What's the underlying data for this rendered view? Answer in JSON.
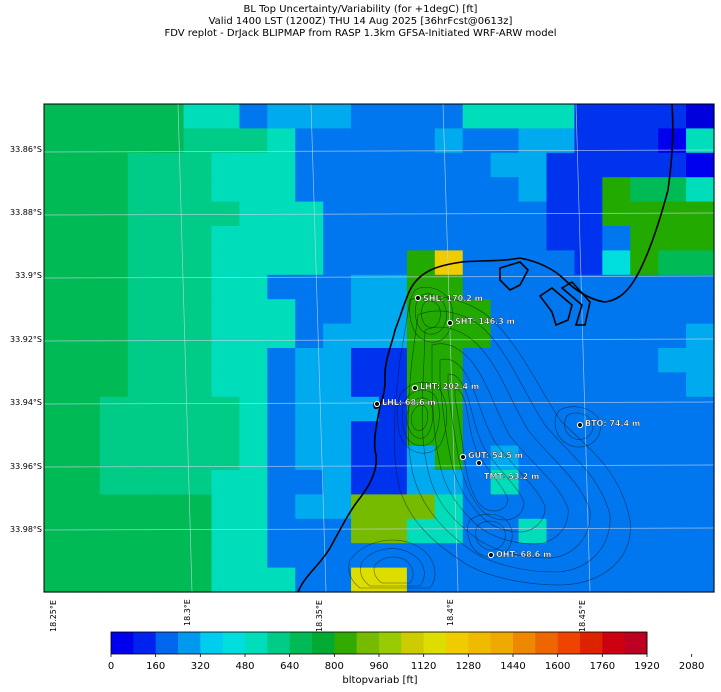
{
  "titles": {
    "line1": "BL Top Uncertainty/Variability (for +1degC) [ft]",
    "line2": "Valid 1400 LST (1200Z) THU 14 Aug 2025 [36hrFcst@0613z]",
    "line3": "FDV replot - DrJack BLIPMAP from RASP 1.3km GFSA-Initiated WRF-ARW model"
  },
  "lat_labels": [
    "33.86°S",
    "33.88°S",
    "33.9°S",
    "33.92°S",
    "33.94°S",
    "33.96°S",
    "33.98°S"
  ],
  "lon_labels": [
    "18.25°E",
    "18.3°E",
    "18.35°E",
    "18.4°E",
    "18.45°E"
  ],
  "stations": [
    {
      "name": "SHL",
      "value": "170.2 m",
      "label": "SHL: 170.2 m"
    },
    {
      "name": "SHT",
      "value": "146.3 m",
      "label": "SHT: 146.3 m"
    },
    {
      "name": "LHT",
      "value": "202.4 m",
      "label": "LHT: 202.4 m"
    },
    {
      "name": "LHL",
      "value": "68.6 m",
      "label": "LHL: 68.6 m"
    },
    {
      "name": "BTO",
      "value": "74.4 m",
      "label": "BTO: 74.4 m"
    },
    {
      "name": "GUT",
      "value": "54.5 m",
      "label": "GUT: 54.5 m"
    },
    {
      "name": "TMT",
      "value": "53.2 m",
      "label": "TMT: 53.2 m"
    },
    {
      "name": "OHT",
      "value": "68.6 m",
      "label": "OHT: 68.6 m"
    }
  ],
  "colorbar": {
    "label": "bltopvariab [ft]",
    "ticks": [
      "0",
      "160",
      "320",
      "480",
      "640",
      "800",
      "960",
      "1120",
      "1280",
      "1440",
      "1600",
      "1760",
      "1920",
      "2080"
    ],
    "colors": [
      "#0000ee",
      "#0022ee",
      "#0066ee",
      "#0099ee",
      "#00ccee",
      "#00dddd",
      "#00ddbb",
      "#00cc88",
      "#00bb55",
      "#00aa33",
      "#33aa00",
      "#77bb00",
      "#99cc00",
      "#cccc00",
      "#dddd00",
      "#eecc00",
      "#eebb00",
      "#eeaa00",
      "#ee8800",
      "#ee6600",
      "#ee4400",
      "#dd2200",
      "#cc0011",
      "#bb0022"
    ]
  },
  "grid": {
    "rows": [
      "CCCCCEEFGGGFFFFEEEEHHHHA",
      "CCCCCDDDEFFFFFGFFGGHHHBE",
      "CCCDDDEEEFFFFFFFGGHHHHHB",
      "CCCDDDEEEFFFFFFFFGHHKCCE",
      "CCCDDDDEEEFFFFFFFFHHKKKK",
      "CCCDDDEEEEFFFFFFFFHHFKKK",
      "CCCDDDEEEEFFFKPFFFFHJKCC",
      "CCCDDDEEFFFGGKKFFFFFFFFF",
      "CCCDDDEEEFFGGKKKFFFFFFFF",
      "CCCDDDEEEFGGGKKKFFFFFFFG",
      "CCCDDDEEFGGHHKKFFFFFFFGG",
      "CCCDDDEEFGGHHKKFFFFFFFFG",
      "CCDDDDDEFGGGHKKFFFFFFFFF",
      "CCDDDDDEFGGHHKKFFFFFFFFF",
      "CCDDDDDEFGGHHGKFGFFFFFFF",
      "CCDDDDEEFFGHHGGFEFFFFFFF",
      "CCCCCCEEFGGLLLEFFFFFFFFF",
      "CCCCCCEEFFFLLEEFFEFFFFFF",
      "CCCCCCEEFFFFFFFFFFFFFFFF",
      "CCCCCCEEEFFMMFFFFFFFFFFF"
    ]
  }
}
